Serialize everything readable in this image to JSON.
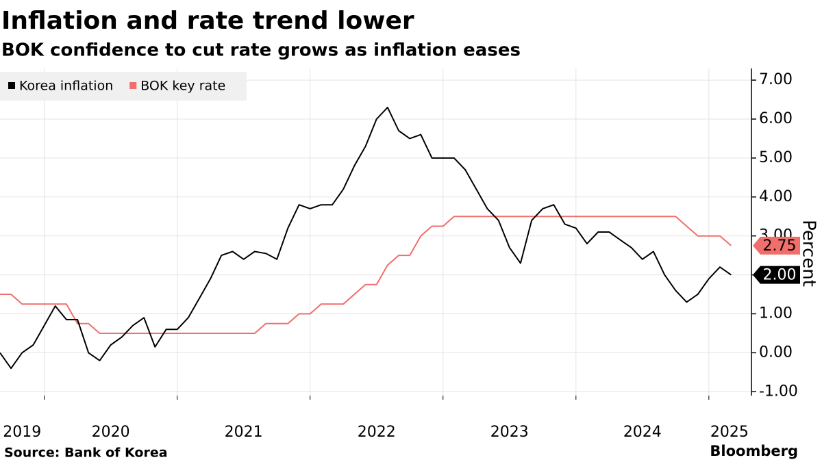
{
  "chart_data": {
    "type": "line",
    "title": "Inflation and rate trend lower",
    "subtitle": "BOK confidence to cut rate grows as inflation eases",
    "ylabel": "Percent",
    "source": "Source: Bank of Korea",
    "brand": "Bloomberg",
    "x": [
      2019.667,
      2019.75,
      2019.833,
      2019.917,
      2020.0,
      2020.083,
      2020.167,
      2020.25,
      2020.333,
      2020.417,
      2020.5,
      2020.583,
      2020.667,
      2020.75,
      2020.833,
      2020.917,
      2021.0,
      2021.083,
      2021.167,
      2021.25,
      2021.333,
      2021.417,
      2021.5,
      2021.583,
      2021.667,
      2021.75,
      2021.833,
      2021.917,
      2022.0,
      2022.083,
      2022.167,
      2022.25,
      2022.333,
      2022.417,
      2022.5,
      2022.583,
      2022.667,
      2022.75,
      2022.833,
      2022.917,
      2023.0,
      2023.083,
      2023.167,
      2023.25,
      2023.333,
      2023.417,
      2023.5,
      2023.583,
      2023.667,
      2023.75,
      2023.833,
      2023.917,
      2024.0,
      2024.083,
      2024.167,
      2024.25,
      2024.333,
      2024.417,
      2024.5,
      2024.583,
      2024.667,
      2024.75,
      2024.833,
      2024.917,
      2025.0,
      2025.083,
      2025.167
    ],
    "series": [
      {
        "name": "Korea inflation",
        "color": "#000000",
        "end_label": "2.00",
        "values": [
          0.0,
          -0.4,
          0.0,
          0.2,
          0.7,
          1.2,
          0.85,
          0.85,
          0.0,
          -0.2,
          0.2,
          0.4,
          0.7,
          0.9,
          0.15,
          0.6,
          0.6,
          0.9,
          1.4,
          1.9,
          2.5,
          2.6,
          2.4,
          2.6,
          2.55,
          2.4,
          3.2,
          3.8,
          3.7,
          3.8,
          3.8,
          4.2,
          4.8,
          5.3,
          6.0,
          6.3,
          5.7,
          5.5,
          5.6,
          5.0,
          5.0,
          5.0,
          4.7,
          4.2,
          3.7,
          3.4,
          2.7,
          2.3,
          3.4,
          3.7,
          3.8,
          3.3,
          3.2,
          2.8,
          3.1,
          3.1,
          2.9,
          2.7,
          2.4,
          2.6,
          2.0,
          1.6,
          1.3,
          1.5,
          1.9,
          2.2,
          2.0
        ]
      },
      {
        "name": "BOK key rate",
        "color": "#f06e6b",
        "end_label": "2.75",
        "values": [
          1.5,
          1.5,
          1.25,
          1.25,
          1.25,
          1.25,
          1.25,
          0.75,
          0.75,
          0.5,
          0.5,
          0.5,
          0.5,
          0.5,
          0.5,
          0.5,
          0.5,
          0.5,
          0.5,
          0.5,
          0.5,
          0.5,
          0.5,
          0.5,
          0.75,
          0.75,
          0.75,
          1.0,
          1.0,
          1.25,
          1.25,
          1.25,
          1.5,
          1.75,
          1.75,
          2.25,
          2.5,
          2.5,
          3.0,
          3.25,
          3.25,
          3.5,
          3.5,
          3.5,
          3.5,
          3.5,
          3.5,
          3.5,
          3.5,
          3.5,
          3.5,
          3.5,
          3.5,
          3.5,
          3.5,
          3.5,
          3.5,
          3.5,
          3.5,
          3.5,
          3.5,
          3.5,
          3.25,
          3.0,
          3.0,
          3.0,
          2.75
        ]
      }
    ],
    "xlim": [
      2019.667,
      2025.31
    ],
    "xticks": [
      2019,
      2020,
      2021,
      2022,
      2023,
      2024,
      2025
    ],
    "ylim": [
      -1.1,
      7.3
    ],
    "yticks": [
      {
        "value": -1,
        "label": "-1.00"
      },
      {
        "value": 0,
        "label": "0.00"
      },
      {
        "value": 1,
        "label": "1.00"
      },
      {
        "value": 2,
        "label": "2.00"
      },
      {
        "value": 3,
        "label": "3.00"
      },
      {
        "value": 4,
        "label": "4.00"
      },
      {
        "value": 5,
        "label": "5.00"
      },
      {
        "value": 6,
        "label": "6.00"
      },
      {
        "value": 7,
        "label": "7.00"
      }
    ],
    "grid": true,
    "legend": "top-left"
  }
}
